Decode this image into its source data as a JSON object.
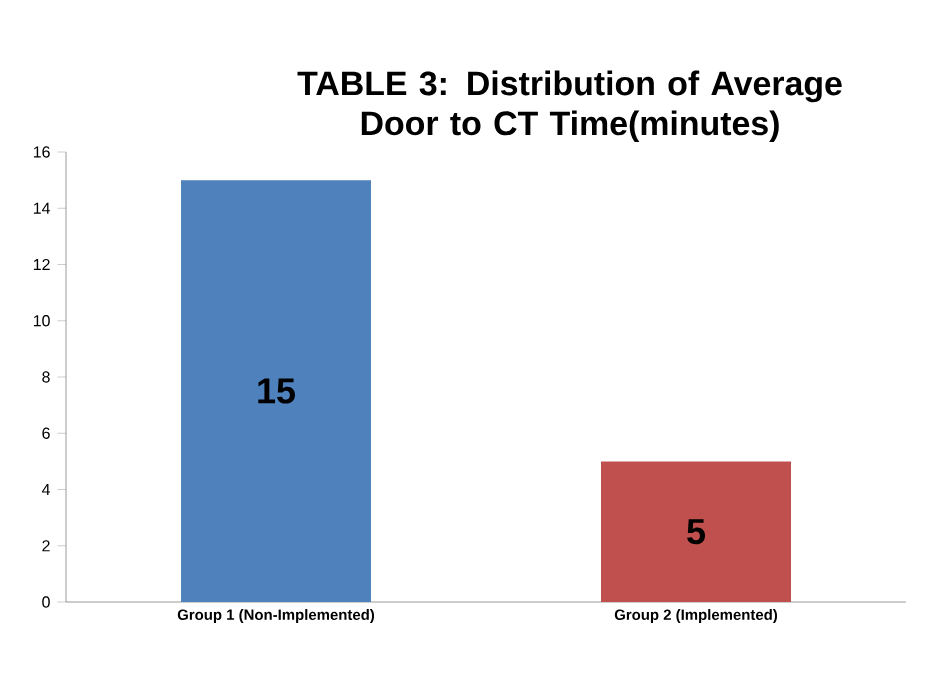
{
  "chart_data": {
    "type": "bar",
    "title": "TABLE 3: Distribution of Average Door to CT Time(minutes)",
    "categories": [
      "Group 1 (Non-Implemented)",
      "Group 2 (Implemented)"
    ],
    "values": [
      15,
      5
    ],
    "colors": [
      "#4f81bd",
      "#c0504d"
    ],
    "ylim": [
      0,
      16
    ],
    "yticks": [
      0,
      2,
      4,
      6,
      8,
      10,
      12,
      14,
      16
    ],
    "data_labels": true,
    "grid": false
  }
}
